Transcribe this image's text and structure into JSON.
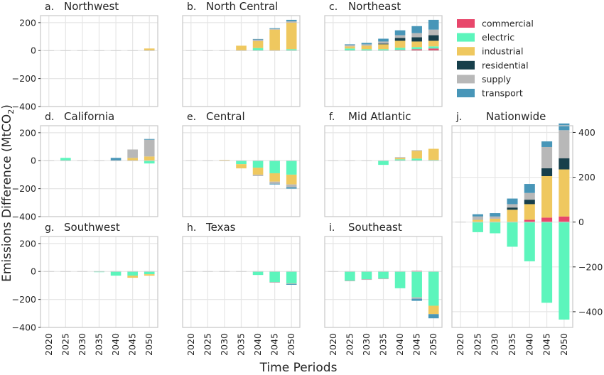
{
  "figure": {
    "ylabel": "Emissions Difference (MtCO",
    "ylabel_sub": "2",
    "ylabel_end": ")",
    "xlabel": "Time Periods"
  },
  "legend": {
    "items": [
      {
        "name": "commercial",
        "color": "#e8476b"
      },
      {
        "name": "electric",
        "color": "#5cf5bc"
      },
      {
        "name": "industrial",
        "color": "#efc85f"
      },
      {
        "name": "residential",
        "color": "#173f4b"
      },
      {
        "name": "supply",
        "color": "#b8b8b8"
      },
      {
        "name": "transport",
        "color": "#4896b8"
      }
    ]
  },
  "chart_data": [
    {
      "id": "a",
      "type": "bar",
      "stacked": true,
      "letter": "a.",
      "title": "Northwest",
      "ylim": [
        -400,
        250
      ],
      "yticks": [
        200,
        0,
        -200,
        -400
      ],
      "grid": true,
      "categories": [
        "2020",
        "2025",
        "2030",
        "2035",
        "2040",
        "2045",
        "2050"
      ],
      "series": [
        {
          "name": "commercial",
          "values": [
            0,
            0,
            0,
            0,
            0,
            0,
            0
          ]
        },
        {
          "name": "electric",
          "values": [
            0,
            0,
            0,
            0,
            0,
            0,
            0
          ]
        },
        {
          "name": "industrial",
          "values": [
            0,
            0,
            0,
            0,
            0,
            0,
            15
          ]
        },
        {
          "name": "residential",
          "values": [
            0,
            0,
            0,
            0,
            0,
            0,
            0
          ]
        },
        {
          "name": "supply",
          "values": [
            0,
            0,
            0,
            0,
            0,
            0,
            0
          ]
        },
        {
          "name": "transport",
          "values": [
            0,
            0,
            0,
            0,
            0,
            0,
            0
          ]
        }
      ]
    },
    {
      "id": "b",
      "type": "bar",
      "stacked": true,
      "letter": "b.",
      "title": "North Central",
      "ylim": [
        -400,
        250
      ],
      "yticks": [
        200,
        0,
        -200,
        -400
      ],
      "grid": true,
      "categories": [
        "2020",
        "2025",
        "2030",
        "2035",
        "2040",
        "2045",
        "2050"
      ],
      "series": [
        {
          "name": "commercial",
          "values": [
            0,
            0,
            0,
            0,
            0,
            0,
            0
          ]
        },
        {
          "name": "electric",
          "values": [
            0,
            0,
            0,
            0,
            18,
            0,
            10
          ]
        },
        {
          "name": "industrial",
          "values": [
            0,
            0,
            0,
            35,
            50,
            150,
            190
          ]
        },
        {
          "name": "residential",
          "values": [
            0,
            0,
            0,
            0,
            0,
            0,
            0
          ]
        },
        {
          "name": "supply",
          "values": [
            0,
            0,
            0,
            0,
            12,
            5,
            10
          ]
        },
        {
          "name": "transport",
          "values": [
            0,
            0,
            0,
            0,
            3,
            5,
            10
          ]
        }
      ]
    },
    {
      "id": "c",
      "type": "bar",
      "stacked": true,
      "letter": "c.",
      "title": "Northeast",
      "ylim": [
        -400,
        250
      ],
      "yticks": [
        200,
        0,
        -200,
        -400
      ],
      "grid": true,
      "categories": [
        "2020",
        "2025",
        "2030",
        "2035",
        "2040",
        "2045",
        "2050"
      ],
      "series": [
        {
          "name": "commercial",
          "values": [
            0,
            0,
            0,
            0,
            5,
            10,
            15
          ]
        },
        {
          "name": "electric",
          "values": [
            0,
            15,
            10,
            10,
            15,
            15,
            15
          ]
        },
        {
          "name": "industrial",
          "values": [
            0,
            15,
            25,
            35,
            50,
            40,
            40
          ]
        },
        {
          "name": "residential",
          "values": [
            0,
            0,
            0,
            5,
            20,
            30,
            40
          ]
        },
        {
          "name": "supply",
          "values": [
            0,
            10,
            10,
            15,
            20,
            30,
            40
          ]
        },
        {
          "name": "transport",
          "values": [
            0,
            5,
            10,
            20,
            35,
            50,
            70
          ]
        }
      ]
    },
    {
      "id": "d",
      "type": "bar",
      "stacked": true,
      "letter": "d.",
      "title": "California",
      "ylim": [
        -400,
        250
      ],
      "yticks": [
        200,
        0,
        -200,
        -400
      ],
      "grid": true,
      "categories": [
        "2020",
        "2025",
        "2030",
        "2035",
        "2040",
        "2045",
        "2050"
      ],
      "series": [
        {
          "name": "commercial",
          "values": [
            0,
            0,
            0,
            0,
            0,
            0,
            0
          ]
        },
        {
          "name": "electric",
          "values": [
            0,
            20,
            0,
            0,
            0,
            0,
            -20
          ]
        },
        {
          "name": "industrial",
          "values": [
            0,
            0,
            0,
            0,
            0,
            20,
            30
          ]
        },
        {
          "name": "residential",
          "values": [
            0,
            0,
            0,
            0,
            0,
            0,
            0
          ]
        },
        {
          "name": "supply",
          "values": [
            0,
            0,
            0,
            0,
            0,
            60,
            120
          ]
        },
        {
          "name": "transport",
          "values": [
            0,
            0,
            0,
            0,
            20,
            0,
            5
          ]
        }
      ]
    },
    {
      "id": "e",
      "type": "bar",
      "stacked": true,
      "letter": "e.",
      "title": "Central",
      "ylim": [
        -400,
        250
      ],
      "yticks": [
        200,
        0,
        -200,
        -400
      ],
      "grid": true,
      "categories": [
        "2020",
        "2025",
        "2030",
        "2035",
        "2040",
        "2045",
        "2050"
      ],
      "series": [
        {
          "name": "commercial",
          "values": [
            0,
            0,
            0,
            0,
            0,
            0,
            0
          ]
        },
        {
          "name": "electric",
          "values": [
            0,
            0,
            0,
            -25,
            -50,
            -90,
            -100
          ]
        },
        {
          "name": "industrial",
          "values": [
            0,
            0,
            5,
            -30,
            -50,
            -60,
            -70
          ]
        },
        {
          "name": "residential",
          "values": [
            0,
            0,
            0,
            0,
            0,
            0,
            0
          ]
        },
        {
          "name": "supply",
          "values": [
            0,
            0,
            0,
            0,
            -10,
            -15,
            -20
          ]
        },
        {
          "name": "transport",
          "values": [
            0,
            0,
            0,
            0,
            0,
            -5,
            -10
          ]
        }
      ]
    },
    {
      "id": "f",
      "type": "bar",
      "stacked": true,
      "letter": "f.",
      "title": "Mid Atlantic",
      "ylim": [
        -400,
        250
      ],
      "yticks": [
        200,
        0,
        -200,
        -400
      ],
      "grid": true,
      "categories": [
        "2020",
        "2025",
        "2030",
        "2035",
        "2040",
        "2045",
        "2050"
      ],
      "series": [
        {
          "name": "commercial",
          "values": [
            0,
            0,
            0,
            0,
            0,
            0,
            0
          ]
        },
        {
          "name": "electric",
          "values": [
            0,
            0,
            0,
            -30,
            10,
            15,
            5
          ]
        },
        {
          "name": "industrial",
          "values": [
            0,
            0,
            0,
            0,
            10,
            55,
            80
          ]
        },
        {
          "name": "residential",
          "values": [
            0,
            0,
            0,
            0,
            0,
            0,
            0
          ]
        },
        {
          "name": "supply",
          "values": [
            0,
            0,
            0,
            0,
            5,
            5,
            0
          ]
        },
        {
          "name": "transport",
          "values": [
            0,
            0,
            0,
            0,
            0,
            0,
            0
          ]
        }
      ]
    },
    {
      "id": "g",
      "type": "bar",
      "stacked": true,
      "letter": "g.",
      "title": "Southwest",
      "ylim": [
        -400,
        250
      ],
      "yticks": [
        200,
        0,
        -200,
        -400
      ],
      "grid": true,
      "categories": [
        "2020",
        "2025",
        "2030",
        "2035",
        "2040",
        "2045",
        "2050"
      ],
      "series": [
        {
          "name": "commercial",
          "values": [
            0,
            0,
            0,
            0,
            0,
            0,
            0
          ]
        },
        {
          "name": "electric",
          "values": [
            0,
            0,
            0,
            -5,
            -30,
            -30,
            -20
          ]
        },
        {
          "name": "industrial",
          "values": [
            0,
            0,
            0,
            0,
            0,
            -15,
            -10
          ]
        },
        {
          "name": "residential",
          "values": [
            0,
            0,
            0,
            0,
            0,
            0,
            0
          ]
        },
        {
          "name": "supply",
          "values": [
            0,
            0,
            0,
            0,
            0,
            0,
            0
          ]
        },
        {
          "name": "transport",
          "values": [
            0,
            0,
            0,
            0,
            0,
            0,
            0
          ]
        }
      ]
    },
    {
      "id": "h",
      "type": "bar",
      "stacked": true,
      "letter": "h.",
      "title": "Texas",
      "ylim": [
        -400,
        250
      ],
      "yticks": [
        200,
        0,
        -200,
        -400
      ],
      "grid": true,
      "categories": [
        "2020",
        "2025",
        "2030",
        "2035",
        "2040",
        "2045",
        "2050"
      ],
      "series": [
        {
          "name": "commercial",
          "values": [
            0,
            0,
            0,
            0,
            0,
            0,
            0
          ]
        },
        {
          "name": "electric",
          "values": [
            0,
            0,
            0,
            0,
            -25,
            -75,
            -85
          ]
        },
        {
          "name": "industrial",
          "values": [
            0,
            0,
            0,
            0,
            0,
            0,
            0
          ]
        },
        {
          "name": "residential",
          "values": [
            0,
            0,
            0,
            0,
            0,
            0,
            0
          ]
        },
        {
          "name": "supply",
          "values": [
            0,
            0,
            0,
            0,
            0,
            -5,
            -5
          ]
        },
        {
          "name": "transport",
          "values": [
            0,
            0,
            0,
            0,
            0,
            0,
            -5
          ]
        }
      ]
    },
    {
      "id": "i",
      "type": "bar",
      "stacked": true,
      "letter": "i.",
      "title": "Southeast",
      "ylim": [
        -400,
        250
      ],
      "yticks": [
        200,
        0,
        -200,
        -400
      ],
      "grid": true,
      "categories": [
        "2020",
        "2025",
        "2030",
        "2035",
        "2040",
        "2045",
        "2050"
      ],
      "series": [
        {
          "name": "commercial",
          "values": [
            0,
            0,
            0,
            0,
            0,
            5,
            0
          ]
        },
        {
          "name": "electric",
          "values": [
            0,
            -65,
            -55,
            -50,
            -120,
            -185,
            -245
          ]
        },
        {
          "name": "industrial",
          "values": [
            0,
            0,
            0,
            0,
            0,
            0,
            -60
          ]
        },
        {
          "name": "residential",
          "values": [
            0,
            0,
            0,
            0,
            0,
            0,
            0
          ]
        },
        {
          "name": "supply",
          "values": [
            0,
            -5,
            -5,
            -5,
            0,
            -10,
            0
          ]
        },
        {
          "name": "transport",
          "values": [
            0,
            0,
            0,
            0,
            0,
            -15,
            -30
          ]
        }
      ]
    },
    {
      "id": "j",
      "type": "bar",
      "stacked": true,
      "letter": "j.",
      "title": "Nationwide",
      "ylim": [
        -470,
        430
      ],
      "yticks": [
        400,
        200,
        0,
        -200,
        -400
      ],
      "grid": true,
      "yaxis": "right",
      "categories": [
        "2020",
        "2025",
        "2030",
        "2035",
        "2040",
        "2045",
        "2050"
      ],
      "series": [
        {
          "name": "commercial",
          "values": [
            0,
            0,
            0,
            0,
            10,
            20,
            25
          ]
        },
        {
          "name": "electric",
          "values": [
            0,
            -45,
            -50,
            -110,
            -175,
            -360,
            -435
          ]
        },
        {
          "name": "industrial",
          "values": [
            0,
            10,
            15,
            55,
            70,
            185,
            210
          ]
        },
        {
          "name": "residential",
          "values": [
            0,
            0,
            0,
            10,
            20,
            35,
            50
          ]
        },
        {
          "name": "supply",
          "values": [
            0,
            15,
            10,
            15,
            30,
            95,
            125
          ]
        },
        {
          "name": "transport",
          "values": [
            0,
            10,
            15,
            25,
            40,
            25,
            30
          ]
        }
      ]
    }
  ]
}
